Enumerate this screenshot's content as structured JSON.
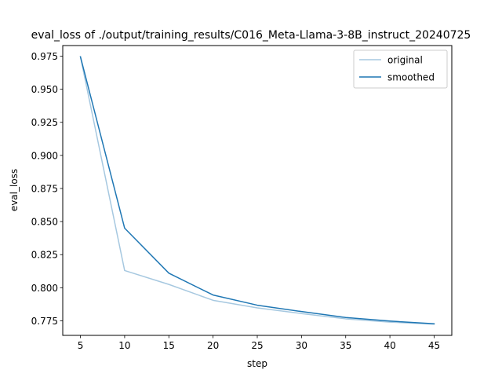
{
  "chart_data": {
    "type": "line",
    "title": "eval_loss of ./output/training_results/C016_Meta-Llama-3-8B_instruct_20240725",
    "xlabel": "step",
    "ylabel": "eval_loss",
    "xlim": [
      3.0,
      47.0
    ],
    "ylim": [
      0.764,
      0.983
    ],
    "x_ticks": [
      "5",
      "10",
      "15",
      "20",
      "25",
      "30",
      "35",
      "40",
      "45"
    ],
    "y_ticks": [
      "0.775",
      "0.800",
      "0.825",
      "0.850",
      "0.875",
      "0.900",
      "0.925",
      "0.950",
      "0.975"
    ],
    "x": [
      5,
      10,
      15,
      20,
      25,
      30,
      35,
      40,
      45
    ],
    "series": [
      {
        "name": "original",
        "color": "#a6c8e0",
        "values": [
          0.9745,
          0.813,
          0.8025,
          0.7905,
          0.7848,
          0.7805,
          0.7765,
          0.774,
          0.7725
        ]
      },
      {
        "name": "smoothed",
        "color": "#1f77b4",
        "values": [
          0.9745,
          0.845,
          0.811,
          0.7945,
          0.7868,
          0.782,
          0.7775,
          0.7748,
          0.7728
        ]
      }
    ],
    "legend_position": "top-right",
    "grid": false
  }
}
